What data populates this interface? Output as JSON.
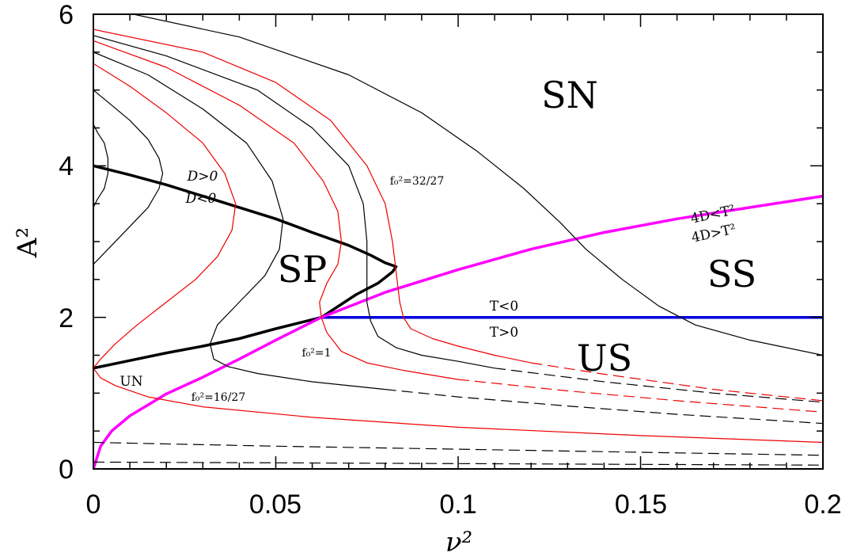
{
  "chart_data": {
    "type": "line",
    "xlabel": "ν²",
    "ylabel": "A²",
    "xlim": [
      0,
      0.2
    ],
    "ylim": [
      0,
      6
    ],
    "x_ticks": [
      "0",
      "0.05",
      "0.1",
      "0.15",
      "0.2"
    ],
    "y_ticks": [
      "0",
      "2",
      "4",
      "6"
    ],
    "region_labels": [
      "SN",
      "SP",
      "SS",
      "US",
      "UN"
    ],
    "boundary_labels": {
      "d_pos": "D>0",
      "d_neg": "D<0",
      "t_neg": "T<0",
      "t_pos": "T>0",
      "disc_lt": "4D<T²",
      "disc_gt": "4D>T²",
      "f_32_27": "f₀²=32/27",
      "f_1": "f₀²=1",
      "f_16_27": "f₀²=16/27"
    },
    "colors": {
      "black": "#000000",
      "red": "#ee0000",
      "magenta": "#ff00ff",
      "blue": "#0000dd"
    },
    "series": [
      {
        "kind": "D=0 boundary",
        "color": "black",
        "style": "solid",
        "width": "bold",
        "points": [
          [
            0,
            4.0
          ],
          [
            0.01,
            3.88
          ],
          [
            0.02,
            3.75
          ],
          [
            0.03,
            3.6
          ],
          [
            0.04,
            3.45
          ],
          [
            0.05,
            3.3
          ],
          [
            0.06,
            3.12
          ],
          [
            0.07,
            2.95
          ],
          [
            0.076,
            2.82
          ],
          [
            0.08,
            2.72
          ],
          [
            0.083,
            2.67
          ],
          [
            0.082,
            2.6
          ],
          [
            0.078,
            2.45
          ],
          [
            0.072,
            2.3
          ],
          [
            0.0625,
            2.0
          ],
          [
            0.05,
            1.85
          ],
          [
            0.04,
            1.72
          ],
          [
            0.03,
            1.62
          ],
          [
            0.02,
            1.53
          ],
          [
            0.01,
            1.43
          ],
          [
            0,
            1.33
          ]
        ]
      },
      {
        "kind": "T=0 boundary",
        "color": "blue",
        "style": "solid",
        "width": "bold",
        "points": [
          [
            0.0625,
            2.0
          ],
          [
            0.2,
            2.0
          ]
        ]
      },
      {
        "kind": "4D=T^2 boundary",
        "color": "magenta",
        "style": "solid",
        "width": "bold",
        "points": [
          [
            0,
            0.0
          ],
          [
            0.002,
            0.3
          ],
          [
            0.005,
            0.5
          ],
          [
            0.01,
            0.7
          ],
          [
            0.02,
            0.99
          ],
          [
            0.03,
            1.21
          ],
          [
            0.04,
            1.45
          ],
          [
            0.05,
            1.7
          ],
          [
            0.0625,
            2.0
          ],
          [
            0.08,
            2.33
          ],
          [
            0.1,
            2.63
          ],
          [
            0.12,
            2.9
          ],
          [
            0.14,
            3.12
          ],
          [
            0.16,
            3.3
          ],
          [
            0.18,
            3.45
          ],
          [
            0.2,
            3.6
          ]
        ]
      },
      {
        "kind": "response curve",
        "color": "black",
        "style": "solid",
        "width": "thin",
        "points": [
          [
            0,
            4.55
          ],
          [
            0.001,
            4.45
          ],
          [
            0.003,
            4.3
          ],
          [
            0.004,
            4.1
          ],
          [
            0.004,
            3.9
          ],
          [
            0.003,
            3.7
          ],
          [
            0.001,
            3.55
          ],
          [
            0,
            3.45
          ]
        ]
      },
      {
        "kind": "response curve",
        "color": "black",
        "style": "solid",
        "width": "thin",
        "points": [
          [
            0,
            5.0
          ],
          [
            0.005,
            4.8
          ],
          [
            0.01,
            4.6
          ],
          [
            0.015,
            4.35
          ],
          [
            0.018,
            4.1
          ],
          [
            0.019,
            3.9
          ],
          [
            0.018,
            3.7
          ],
          [
            0.015,
            3.45
          ],
          [
            0.01,
            3.2
          ],
          [
            0.005,
            2.95
          ],
          [
            0,
            2.7
          ]
        ]
      },
      {
        "kind": "response curve",
        "color": "red",
        "style": "solid",
        "width": "thin",
        "points": [
          [
            0,
            5.35
          ],
          [
            0.01,
            5.05
          ],
          [
            0.02,
            4.7
          ],
          [
            0.03,
            4.3
          ],
          [
            0.036,
            3.9
          ],
          [
            0.039,
            3.5
          ],
          [
            0.038,
            3.15
          ],
          [
            0.034,
            2.8
          ],
          [
            0.028,
            2.5
          ],
          [
            0.02,
            2.2
          ],
          [
            0.012,
            1.9
          ],
          [
            0.006,
            1.65
          ],
          [
            0.002,
            1.45
          ],
          [
            0,
            1.33
          ],
          [
            0.002,
            1.2
          ],
          [
            0.006,
            1.1
          ],
          [
            0.015,
            0.95
          ],
          [
            0.03,
            0.82
          ],
          [
            0.06,
            0.68
          ],
          [
            0.1,
            0.55
          ],
          [
            0.15,
            0.44
          ],
          [
            0.2,
            0.35
          ]
        ]
      },
      {
        "kind": "response curve",
        "color": "black",
        "style": "solid",
        "width": "thin",
        "points": [
          [
            0,
            5.5
          ],
          [
            0.015,
            5.2
          ],
          [
            0.03,
            4.75
          ],
          [
            0.042,
            4.3
          ],
          [
            0.049,
            3.8
          ],
          [
            0.052,
            3.3
          ],
          [
            0.051,
            2.9
          ],
          [
            0.047,
            2.55
          ],
          [
            0.04,
            2.2
          ],
          [
            0.034,
            1.9
          ],
          [
            0.032,
            1.65
          ],
          [
            0.033,
            1.45
          ],
          [
            0.037,
            1.35
          ],
          [
            0.045,
            1.26
          ],
          [
            0.06,
            1.15
          ],
          [
            0.08,
            1.05
          ]
        ]
      },
      {
        "kind": "response curve",
        "color": "black",
        "style": "dashed",
        "width": "thin",
        "points": [
          [
            0.08,
            1.05
          ],
          [
            0.1,
            0.95
          ],
          [
            0.13,
            0.83
          ],
          [
            0.16,
            0.72
          ],
          [
            0.2,
            0.6
          ]
        ]
      },
      {
        "kind": "response curve",
        "color": "red",
        "style": "solid",
        "width": "thin",
        "points": [
          [
            0,
            5.65
          ],
          [
            0.02,
            5.3
          ],
          [
            0.04,
            4.8
          ],
          [
            0.055,
            4.3
          ],
          [
            0.063,
            3.8
          ],
          [
            0.067,
            3.4
          ],
          [
            0.068,
            3.0
          ],
          [
            0.067,
            2.7
          ],
          [
            0.064,
            2.45
          ],
          [
            0.062,
            2.2
          ],
          [
            0.0625,
            2.0
          ],
          [
            0.064,
            1.8
          ],
          [
            0.068,
            1.55
          ],
          [
            0.075,
            1.4
          ],
          [
            0.085,
            1.3
          ],
          [
            0.1,
            1.18
          ]
        ]
      },
      {
        "kind": "response curve",
        "color": "red",
        "style": "dashed",
        "width": "thin",
        "points": [
          [
            0.1,
            1.18
          ],
          [
            0.13,
            1.03
          ],
          [
            0.16,
            0.9
          ],
          [
            0.2,
            0.75
          ]
        ]
      },
      {
        "kind": "response curve",
        "color": "black",
        "style": "solid",
        "width": "thin",
        "points": [
          [
            0,
            5.72
          ],
          [
            0.02,
            5.45
          ],
          [
            0.045,
            5.0
          ],
          [
            0.06,
            4.5
          ],
          [
            0.07,
            4.0
          ],
          [
            0.074,
            3.5
          ],
          [
            0.075,
            3.0
          ],
          [
            0.075,
            2.55
          ],
          [
            0.075,
            2.2
          ],
          [
            0.076,
            1.95
          ],
          [
            0.078,
            1.75
          ],
          [
            0.083,
            1.6
          ],
          [
            0.09,
            1.5
          ],
          [
            0.1,
            1.42
          ],
          [
            0.11,
            1.33
          ]
        ]
      },
      {
        "kind": "response curve",
        "color": "black",
        "style": "dashed",
        "width": "thin",
        "points": [
          [
            0.11,
            1.33
          ],
          [
            0.14,
            1.15
          ],
          [
            0.17,
            1.0
          ],
          [
            0.2,
            0.88
          ]
        ]
      },
      {
        "kind": "response curve",
        "color": "red",
        "style": "solid",
        "width": "thin",
        "points": [
          [
            0,
            5.8
          ],
          [
            0.03,
            5.5
          ],
          [
            0.05,
            5.1
          ],
          [
            0.065,
            4.6
          ],
          [
            0.075,
            4.0
          ],
          [
            0.08,
            3.5
          ],
          [
            0.082,
            3.0
          ],
          [
            0.083,
            2.6
          ],
          [
            0.084,
            2.2
          ],
          [
            0.085,
            2.0
          ],
          [
            0.087,
            1.85
          ],
          [
            0.093,
            1.72
          ],
          [
            0.1,
            1.62
          ],
          [
            0.11,
            1.5
          ],
          [
            0.12,
            1.4
          ]
        ]
      },
      {
        "kind": "response curve",
        "color": "red",
        "style": "dashed",
        "width": "thin",
        "points": [
          [
            0.12,
            1.4
          ],
          [
            0.14,
            1.25
          ],
          [
            0.17,
            1.05
          ],
          [
            0.2,
            0.9
          ]
        ]
      },
      {
        "kind": "response curve",
        "color": "black",
        "style": "solid",
        "width": "thin",
        "points": [
          [
            0.011,
            6.0
          ],
          [
            0.04,
            5.7
          ],
          [
            0.07,
            5.2
          ],
          [
            0.09,
            4.7
          ],
          [
            0.105,
            4.2
          ],
          [
            0.118,
            3.7
          ],
          [
            0.128,
            3.25
          ],
          [
            0.135,
            2.9
          ],
          [
            0.145,
            2.5
          ],
          [
            0.155,
            2.15
          ],
          [
            0.165,
            1.9
          ],
          [
            0.18,
            1.7
          ],
          [
            0.2,
            1.5
          ]
        ]
      },
      {
        "kind": "response curve",
        "color": "black",
        "style": "dashed",
        "width": "thin",
        "points": [
          [
            0,
            0.35
          ],
          [
            0.05,
            0.3
          ],
          [
            0.1,
            0.26
          ],
          [
            0.15,
            0.22
          ],
          [
            0.2,
            0.18
          ]
        ]
      },
      {
        "kind": "response curve",
        "color": "black",
        "style": "dashed",
        "width": "thin",
        "points": [
          [
            0,
            0.09
          ],
          [
            0.05,
            0.08
          ],
          [
            0.1,
            0.07
          ],
          [
            0.15,
            0.06
          ],
          [
            0.2,
            0.05
          ]
        ]
      }
    ]
  }
}
